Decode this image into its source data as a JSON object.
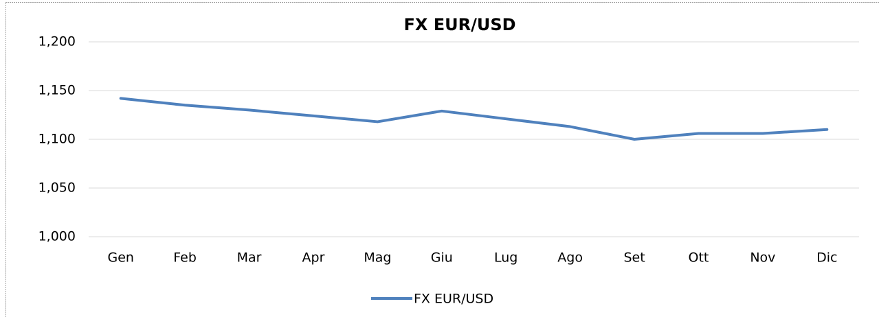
{
  "chart_data": {
    "type": "line",
    "title": "FX EUR/USD",
    "categories": [
      "Gen",
      "Feb",
      "Mar",
      "Apr",
      "Mag",
      "Giu",
      "Lug",
      "Ago",
      "Set",
      "Ott",
      "Nov",
      "Dic"
    ],
    "series": [
      {
        "name": "FX EUR/USD",
        "color": "#4f81bd",
        "values": [
          1.142,
          1.135,
          1.13,
          1.124,
          1.118,
          1.129,
          1.121,
          1.113,
          1.1,
          1.106,
          1.106,
          1.11
        ]
      }
    ],
    "ylim": [
      1.0,
      1.2
    ],
    "yticks": [
      {
        "value": 1.0,
        "label": "1,000"
      },
      {
        "value": 1.05,
        "label": "1,050"
      },
      {
        "value": 1.1,
        "label": "1,100"
      },
      {
        "value": 1.15,
        "label": "1,150"
      },
      {
        "value": 1.2,
        "label": "1,200"
      }
    ],
    "grid": true,
    "legend": "bottom"
  }
}
